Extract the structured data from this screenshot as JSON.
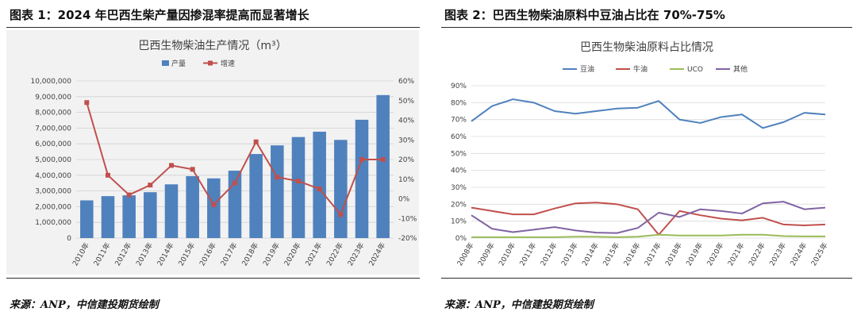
{
  "left": {
    "figure_title": "图表 1：2024 年巴西生柴产量因掺混率提高而显著增长",
    "source": "来源：ANP，中信建投期货绘制"
  },
  "right": {
    "figure_title": "图表 2：巴西生物柴油原料中豆油占比在 70%-75%",
    "source": "来源：ANP，中信建投期货绘制"
  },
  "colors": {
    "bar": "#4f81bd",
    "growth_line": "#c0504d",
    "soy": "#4f81bd",
    "tallow": "#c0504d",
    "uco": "#9bbb59",
    "other": "#8064a2"
  },
  "chart_data": [
    {
      "type": "bar",
      "title": "巴西生物柴油生产情况（m³）",
      "categories": [
        "2010年",
        "2011年",
        "2012年",
        "2013年",
        "2014年",
        "2015年",
        "2016年",
        "2017年",
        "2018年",
        "2019年",
        "2020年",
        "2021年",
        "2022年",
        "2023年",
        "2024年"
      ],
      "series": [
        {
          "name": "产量",
          "type": "bar",
          "axis": "left",
          "values": [
            2400000,
            2670000,
            2720000,
            2920000,
            3420000,
            3940000,
            3800000,
            4290000,
            5350000,
            5900000,
            6430000,
            6770000,
            6250000,
            7530000,
            9100000
          ]
        },
        {
          "name": "增速",
          "type": "line",
          "axis": "right",
          "values": [
            49,
            12,
            2,
            7,
            17,
            15,
            -3,
            8,
            29,
            11,
            9,
            5,
            -8,
            20,
            20
          ]
        }
      ],
      "y_left": {
        "min": 0,
        "max": 10000000,
        "step": 1000000,
        "tick_labels": [
          "0",
          "1,000,000",
          "2,000,000",
          "3,000,000",
          "4,000,000",
          "5,000,000",
          "6,000,000",
          "7,000,000",
          "8,000,000",
          "9,000,000",
          "10,000,000"
        ]
      },
      "y_right": {
        "min": -20,
        "max": 60,
        "step": 10,
        "tick_labels": [
          "-20%",
          "-10%",
          "0%",
          "10%",
          "20%",
          "30%",
          "40%",
          "50%",
          "60%"
        ]
      },
      "legend_position": "top-center",
      "grid": true
    },
    {
      "type": "line",
      "title": "巴西生物柴油原料占比情况",
      "categories": [
        "2008年",
        "2009年",
        "2010年",
        "2011年",
        "2012年",
        "2013年",
        "2014年",
        "2015年",
        "2016年",
        "2017年",
        "2018年",
        "2019年",
        "2020年",
        "2021年",
        "2022年",
        "2023年",
        "2024年",
        "2025年"
      ],
      "series": [
        {
          "name": "豆油",
          "values": [
            69,
            78,
            82,
            80,
            75,
            73.5,
            75,
            76.5,
            77,
            81,
            70,
            68,
            71.5,
            73,
            65,
            68.5,
            74,
            73
          ]
        },
        {
          "name": "牛油",
          "values": [
            18,
            16,
            14,
            14,
            17.5,
            20.5,
            21,
            20,
            17,
            2,
            16,
            13.5,
            11.5,
            10.5,
            12,
            8,
            7.5,
            8
          ]
        },
        {
          "name": "UCO",
          "values": [
            0.5,
            0.5,
            0.5,
            0.5,
            0.5,
            0.8,
            0.8,
            0.5,
            0.8,
            2,
            1.5,
            1.5,
            1.5,
            2,
            2,
            1.2,
            1,
            1
          ]
        },
        {
          "name": "其他",
          "values": [
            13.5,
            5.5,
            3.5,
            5,
            6.5,
            4.5,
            3.2,
            3,
            6,
            15,
            12.5,
            17,
            16,
            14.5,
            20.5,
            21.5,
            17,
            18
          ]
        }
      ],
      "y": {
        "min": 0,
        "max": 90,
        "step": 10,
        "tick_labels": [
          "0%",
          "10%",
          "20%",
          "30%",
          "40%",
          "50%",
          "60%",
          "70%",
          "80%",
          "90%"
        ]
      },
      "legend_position": "top-center",
      "grid": true
    }
  ]
}
